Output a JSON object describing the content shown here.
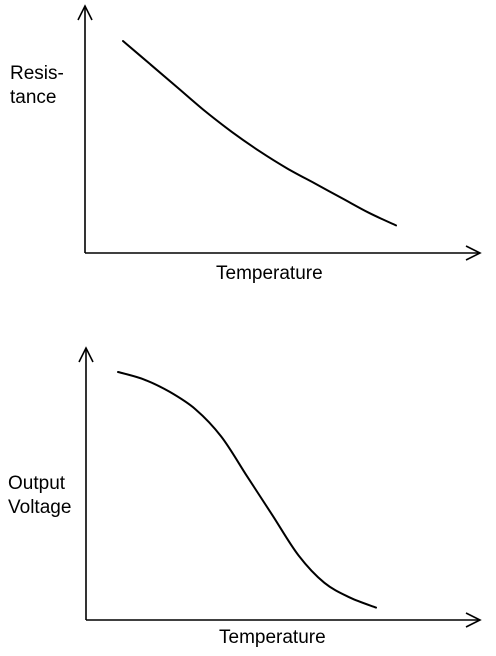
{
  "chart_data": [
    {
      "type": "line",
      "title": "",
      "xlabel": "Temperature",
      "ylabel_lines": [
        "Resis-",
        "tance"
      ],
      "xlim": [
        0,
        1
      ],
      "ylim": [
        0,
        1
      ],
      "grid": false,
      "legend": "none",
      "series": [
        {
          "x": [
            0.0,
            0.1,
            0.2,
            0.3,
            0.4,
            0.5,
            0.6,
            0.7,
            0.8,
            0.9,
            1.0
          ],
          "y": [
            1.0,
            0.89,
            0.78,
            0.67,
            0.57,
            0.48,
            0.4,
            0.33,
            0.26,
            0.19,
            0.13
          ]
        }
      ]
    },
    {
      "type": "line",
      "title": "",
      "xlabel": "Temperature",
      "ylabel_lines": [
        "Output",
        "Voltage"
      ],
      "xlim": [
        0,
        1
      ],
      "ylim": [
        0,
        1
      ],
      "grid": false,
      "legend": "none",
      "series": [
        {
          "x": [
            0.0,
            0.1,
            0.2,
            0.3,
            0.4,
            0.5,
            0.6,
            0.7,
            0.8,
            0.9,
            1.0
          ],
          "y": [
            1.0,
            0.97,
            0.92,
            0.85,
            0.74,
            0.58,
            0.42,
            0.26,
            0.15,
            0.09,
            0.05
          ]
        }
      ]
    }
  ]
}
